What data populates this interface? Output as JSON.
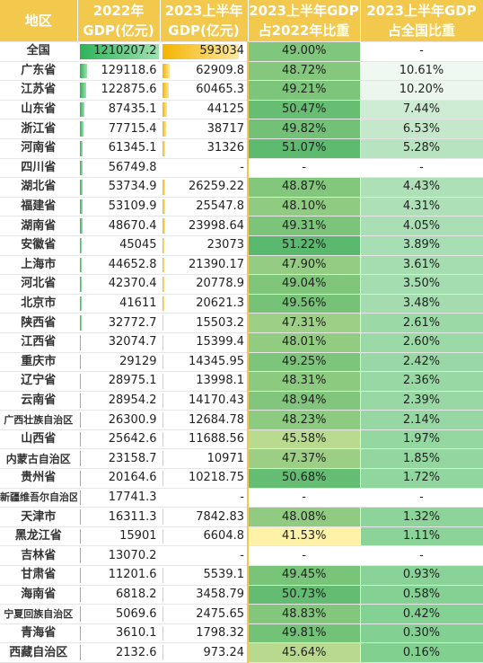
{
  "headers": {
    "region": [
      "地区"
    ],
    "gdp2022": [
      "2022年",
      "GDP(亿元)"
    ],
    "gdp2023h1": [
      "2023上半年",
      "GDP(亿元)"
    ],
    "ratio": [
      "2023上半年GDP",
      "占2022年比重"
    ],
    "share": [
      "2023上半年GDP",
      "占全国比重"
    ]
  },
  "bar_max": {
    "gdp2022": 1210207.2,
    "gdp2023h1": 593034
  },
  "colors": {
    "header_bg": "#f2c94c",
    "bar_2022": "#2fb35a",
    "bar_2023": "#f4b400",
    "ratio_high": "#59b96e",
    "ratio_low": "#fff1a8",
    "share_high": "#7fcf8f"
  },
  "rows": [
    {
      "region": "全国",
      "gdp2022": "1210207.2",
      "gdp2023h1": "593034",
      "ratio": "49.00%",
      "share": "-",
      "ratio_num": 49.0,
      "share_num": null,
      "g22": 1210207.2,
      "g23": 593034
    },
    {
      "region": "广东省",
      "gdp2022": "129118.6",
      "gdp2023h1": "62909.8",
      "ratio": "48.72%",
      "share": "10.61%",
      "ratio_num": 48.72,
      "share_num": 10.61,
      "g22": 129118.6,
      "g23": 62909.8
    },
    {
      "region": "江苏省",
      "gdp2022": "122875.6",
      "gdp2023h1": "60465.3",
      "ratio": "49.21%",
      "share": "10.20%",
      "ratio_num": 49.21,
      "share_num": 10.2,
      "g22": 122875.6,
      "g23": 60465.3
    },
    {
      "region": "山东省",
      "gdp2022": "87435.1",
      "gdp2023h1": "44125",
      "ratio": "50.47%",
      "share": "7.44%",
      "ratio_num": 50.47,
      "share_num": 7.44,
      "g22": 87435.1,
      "g23": 44125
    },
    {
      "region": "浙江省",
      "gdp2022": "77715.4",
      "gdp2023h1": "38717",
      "ratio": "49.82%",
      "share": "6.53%",
      "ratio_num": 49.82,
      "share_num": 6.53,
      "g22": 77715.4,
      "g23": 38717
    },
    {
      "region": "河南省",
      "gdp2022": "61345.1",
      "gdp2023h1": "31326",
      "ratio": "51.07%",
      "share": "5.28%",
      "ratio_num": 51.07,
      "share_num": 5.28,
      "g22": 61345.1,
      "g23": 31326
    },
    {
      "region": "四川省",
      "gdp2022": "56749.8",
      "gdp2023h1": "-",
      "ratio": "-",
      "share": "-",
      "ratio_num": null,
      "share_num": null,
      "g22": 56749.8,
      "g23": null
    },
    {
      "region": "湖北省",
      "gdp2022": "53734.9",
      "gdp2023h1": "26259.22",
      "ratio": "48.87%",
      "share": "4.43%",
      "ratio_num": 48.87,
      "share_num": 4.43,
      "g22": 53734.9,
      "g23": 26259.22
    },
    {
      "region": "福建省",
      "gdp2022": "53109.9",
      "gdp2023h1": "25547.8",
      "ratio": "48.10%",
      "share": "4.31%",
      "ratio_num": 48.1,
      "share_num": 4.31,
      "g22": 53109.9,
      "g23": 25547.8
    },
    {
      "region": "湖南省",
      "gdp2022": "48670.4",
      "gdp2023h1": "23998.64",
      "ratio": "49.31%",
      "share": "4.05%",
      "ratio_num": 49.31,
      "share_num": 4.05,
      "g22": 48670.4,
      "g23": 23998.64
    },
    {
      "region": "安徽省",
      "gdp2022": "45045",
      "gdp2023h1": "23073",
      "ratio": "51.22%",
      "share": "3.89%",
      "ratio_num": 51.22,
      "share_num": 3.89,
      "g22": 45045,
      "g23": 23073
    },
    {
      "region": "上海市",
      "gdp2022": "44652.8",
      "gdp2023h1": "21390.17",
      "ratio": "47.90%",
      "share": "3.61%",
      "ratio_num": 47.9,
      "share_num": 3.61,
      "g22": 44652.8,
      "g23": 21390.17
    },
    {
      "region": "河北省",
      "gdp2022": "42370.4",
      "gdp2023h1": "20778.9",
      "ratio": "49.04%",
      "share": "3.50%",
      "ratio_num": 49.04,
      "share_num": 3.5,
      "g22": 42370.4,
      "g23": 20778.9
    },
    {
      "region": "北京市",
      "gdp2022": "41611",
      "gdp2023h1": "20621.3",
      "ratio": "49.56%",
      "share": "3.48%",
      "ratio_num": 49.56,
      "share_num": 3.48,
      "g22": 41611,
      "g23": 20621.3
    },
    {
      "region": "陕西省",
      "gdp2022": "32772.7",
      "gdp2023h1": "15503.2",
      "ratio": "47.31%",
      "share": "2.61%",
      "ratio_num": 47.31,
      "share_num": 2.61,
      "g22": 32772.7,
      "g23": 15503.2
    },
    {
      "region": "江西省",
      "gdp2022": "32074.7",
      "gdp2023h1": "15399.4",
      "ratio": "48.01%",
      "share": "2.60%",
      "ratio_num": 48.01,
      "share_num": 2.6,
      "g22": 32074.7,
      "g23": 15399.4
    },
    {
      "region": "重庆市",
      "gdp2022": "29129",
      "gdp2023h1": "14345.95",
      "ratio": "49.25%",
      "share": "2.42%",
      "ratio_num": 49.25,
      "share_num": 2.42,
      "g22": 29129,
      "g23": 14345.95
    },
    {
      "region": "辽宁省",
      "gdp2022": "28975.1",
      "gdp2023h1": "13998.1",
      "ratio": "48.31%",
      "share": "2.36%",
      "ratio_num": 48.31,
      "share_num": 2.36,
      "g22": 28975.1,
      "g23": 13998.1
    },
    {
      "region": "云南省",
      "gdp2022": "28954.2",
      "gdp2023h1": "14170.43",
      "ratio": "48.94%",
      "share": "2.39%",
      "ratio_num": 48.94,
      "share_num": 2.39,
      "g22": 28954.2,
      "g23": 14170.43
    },
    {
      "region": "广西壮族自治区",
      "gdp2022": "26300.9",
      "gdp2023h1": "12684.78",
      "ratio": "48.23%",
      "share": "2.14%",
      "ratio_num": 48.23,
      "share_num": 2.14,
      "g22": 26300.9,
      "g23": 12684.78
    },
    {
      "region": "山西省",
      "gdp2022": "25642.6",
      "gdp2023h1": "11688.56",
      "ratio": "45.58%",
      "share": "1.97%",
      "ratio_num": 45.58,
      "share_num": 1.97,
      "g22": 25642.6,
      "g23": 11688.56
    },
    {
      "region": "内蒙古自治区",
      "gdp2022": "23158.7",
      "gdp2023h1": "10971",
      "ratio": "47.37%",
      "share": "1.85%",
      "ratio_num": 47.37,
      "share_num": 1.85,
      "g22": 23158.7,
      "g23": 10971
    },
    {
      "region": "贵州省",
      "gdp2022": "20164.6",
      "gdp2023h1": "10218.75",
      "ratio": "50.68%",
      "share": "1.72%",
      "ratio_num": 50.68,
      "share_num": 1.72,
      "g22": 20164.6,
      "g23": 10218.75
    },
    {
      "region": "新疆维吾尔自治区",
      "gdp2022": "17741.3",
      "gdp2023h1": "-",
      "ratio": "-",
      "share": "-",
      "ratio_num": null,
      "share_num": null,
      "g22": 17741.3,
      "g23": null
    },
    {
      "region": "天津市",
      "gdp2022": "16311.3",
      "gdp2023h1": "7842.83",
      "ratio": "48.08%",
      "share": "1.32%",
      "ratio_num": 48.08,
      "share_num": 1.32,
      "g22": 16311.3,
      "g23": 7842.83
    },
    {
      "region": "黑龙江省",
      "gdp2022": "15901",
      "gdp2023h1": "6604.8",
      "ratio": "41.53%",
      "share": "1.11%",
      "ratio_num": 41.53,
      "share_num": 1.11,
      "g22": 15901,
      "g23": 6604.8
    },
    {
      "region": "吉林省",
      "gdp2022": "13070.2",
      "gdp2023h1": "-",
      "ratio": "-",
      "share": "-",
      "ratio_num": null,
      "share_num": null,
      "g22": 13070.2,
      "g23": null
    },
    {
      "region": "甘肃省",
      "gdp2022": "11201.6",
      "gdp2023h1": "5539.1",
      "ratio": "49.45%",
      "share": "0.93%",
      "ratio_num": 49.45,
      "share_num": 0.93,
      "g22": 11201.6,
      "g23": 5539.1
    },
    {
      "region": "海南省",
      "gdp2022": "6818.2",
      "gdp2023h1": "3458.79",
      "ratio": "50.73%",
      "share": "0.58%",
      "ratio_num": 50.73,
      "share_num": 0.58,
      "g22": 6818.2,
      "g23": 3458.79
    },
    {
      "region": "宁夏回族自治区",
      "gdp2022": "5069.6",
      "gdp2023h1": "2475.65",
      "ratio": "48.83%",
      "share": "0.42%",
      "ratio_num": 48.83,
      "share_num": 0.42,
      "g22": 5069.6,
      "g23": 2475.65
    },
    {
      "region": "青海省",
      "gdp2022": "3610.1",
      "gdp2023h1": "1798.32",
      "ratio": "49.81%",
      "share": "0.30%",
      "ratio_num": 49.81,
      "share_num": 0.3,
      "g22": 3610.1,
      "g23": 1798.32
    },
    {
      "region": "西藏自治区",
      "gdp2022": "2132.6",
      "gdp2023h1": "973.24",
      "ratio": "45.64%",
      "share": "0.16%",
      "ratio_num": 45.64,
      "share_num": 0.16,
      "g22": 2132.6,
      "g23": 973.24
    }
  ]
}
